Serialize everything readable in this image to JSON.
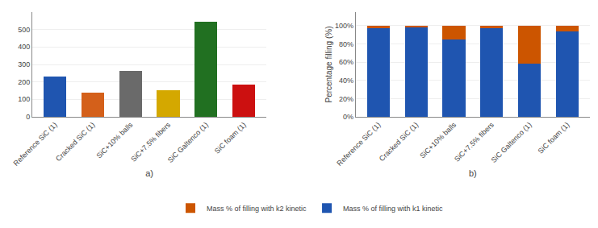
{
  "chart_data": [
    {
      "type": "bar",
      "categories": [
        "Reference SiC (1)",
        "Cracked SiC (1)",
        "SiC+10% balls",
        "SiC+7.5% fibers",
        "SiC Galtenco (1)",
        "SiC foam (1)"
      ],
      "values": [
        232,
        140,
        265,
        152,
        545,
        185
      ],
      "colors": [
        "#1f55b0",
        "#d4601a",
        "#6a6a6a",
        "#d4a800",
        "#217021",
        "#cc1010"
      ],
      "xlabel": "a)",
      "ylim": [
        0,
        600
      ],
      "yticks": [
        0,
        100,
        200,
        300,
        400,
        500
      ],
      "grid": true
    },
    {
      "type": "bar",
      "stacked": true,
      "categories": [
        "Reference SiC (1)",
        "Cracked SiC (1)",
        "SiC+10% balls",
        "SiC+7.5% fibers",
        "SiC Galtenco (1)",
        "SiC foam (1)"
      ],
      "series": [
        {
          "name": "Mass % of filling with k1 kinetic",
          "color": "#1f55b0",
          "values": [
            97,
            99,
            85,
            97,
            58,
            94
          ]
        },
        {
          "name": "Mass % of filling with k2 kinetic",
          "color": "#cc5500",
          "values": [
            3,
            1,
            15,
            3,
            42,
            6
          ]
        }
      ],
      "xlabel": "b)",
      "ylabel": "Percentage filling (%)",
      "ylim": [
        0,
        115
      ],
      "yticks": [
        {
          "value": 0,
          "label": "0%"
        },
        {
          "value": 20,
          "label": "20%"
        },
        {
          "value": 40,
          "label": "40%"
        },
        {
          "value": 60,
          "label": "60%"
        },
        {
          "value": 80,
          "label": "80%"
        },
        {
          "value": 100,
          "label": "100%"
        }
      ],
      "grid": true,
      "legend": "bottom"
    }
  ]
}
